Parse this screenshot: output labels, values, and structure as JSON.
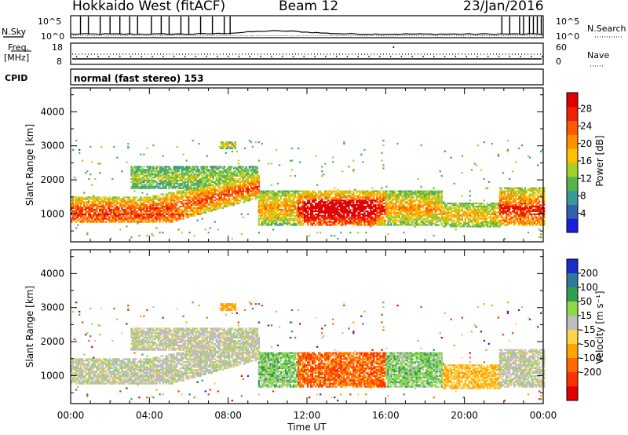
{
  "header": {
    "station": "Hokkaido West (fitACF)",
    "beam": "Beam 12",
    "date": "23/Jan/2016"
  },
  "summary_panels": {
    "nsky_label": "N.Sky",
    "nsearch_label": "N.Search",
    "count_ticks": [
      "10^5",
      "10^0"
    ],
    "freq_label_top": "Freq.",
    "freq_label_unit": "[MHz]",
    "freq_ticks": [
      "18",
      "8"
    ],
    "nave_label": "Nave",
    "nave_ticks": [
      "60",
      "0"
    ],
    "cpid_label": "CPID",
    "cpid_text": "normal (fast stereo) 153"
  },
  "chart_data": [
    {
      "type": "heatmap",
      "name": "power",
      "ylabel": "Slant Range [km]",
      "yticks": [
        "1000",
        "2000",
        "3000",
        "4000"
      ],
      "ylim": [
        180,
        4700
      ],
      "xlim": [
        0,
        24
      ],
      "colorbar_label": "Power [dB]",
      "colorbar_ticks": [
        "4",
        "8",
        "12",
        "16",
        "20",
        "24",
        "28"
      ],
      "colorbar_colors": [
        "#1a20d8",
        "#2f62b0",
        "#3a9a9a",
        "#55b64a",
        "#a7cf2a",
        "#ffc000",
        "#ff9000",
        "#ff5a00",
        "#f02000",
        "#e00000"
      ],
      "colorbar_range": [
        0,
        30
      ]
    },
    {
      "type": "heatmap",
      "name": "velocity",
      "ylabel": "Slant Range [km]",
      "yticks": [
        "1000",
        "2000",
        "3000",
        "4000"
      ],
      "ylim": [
        180,
        4700
      ],
      "xlim": [
        0,
        24
      ],
      "colorbar_label": "Velocity [m s⁻¹]",
      "colorbar_ticks": [
        "200",
        "100",
        "50",
        "15",
        "-15",
        "-50",
        "-100",
        "-200"
      ],
      "colorbar_colors": [
        "#1a2fc8",
        "#2f7a9a",
        "#2fa050",
        "#8cd84a",
        "#bdbdbd",
        "#ffd34a",
        "#ffa500",
        "#ff6a00",
        "#ff3000",
        "#e00000"
      ]
    }
  ],
  "x_axis": {
    "ticks": [
      "00:00",
      "04:00",
      "08:00",
      "12:00",
      "16:00",
      "20:00",
      "00:00"
    ],
    "title": "Time UT"
  }
}
